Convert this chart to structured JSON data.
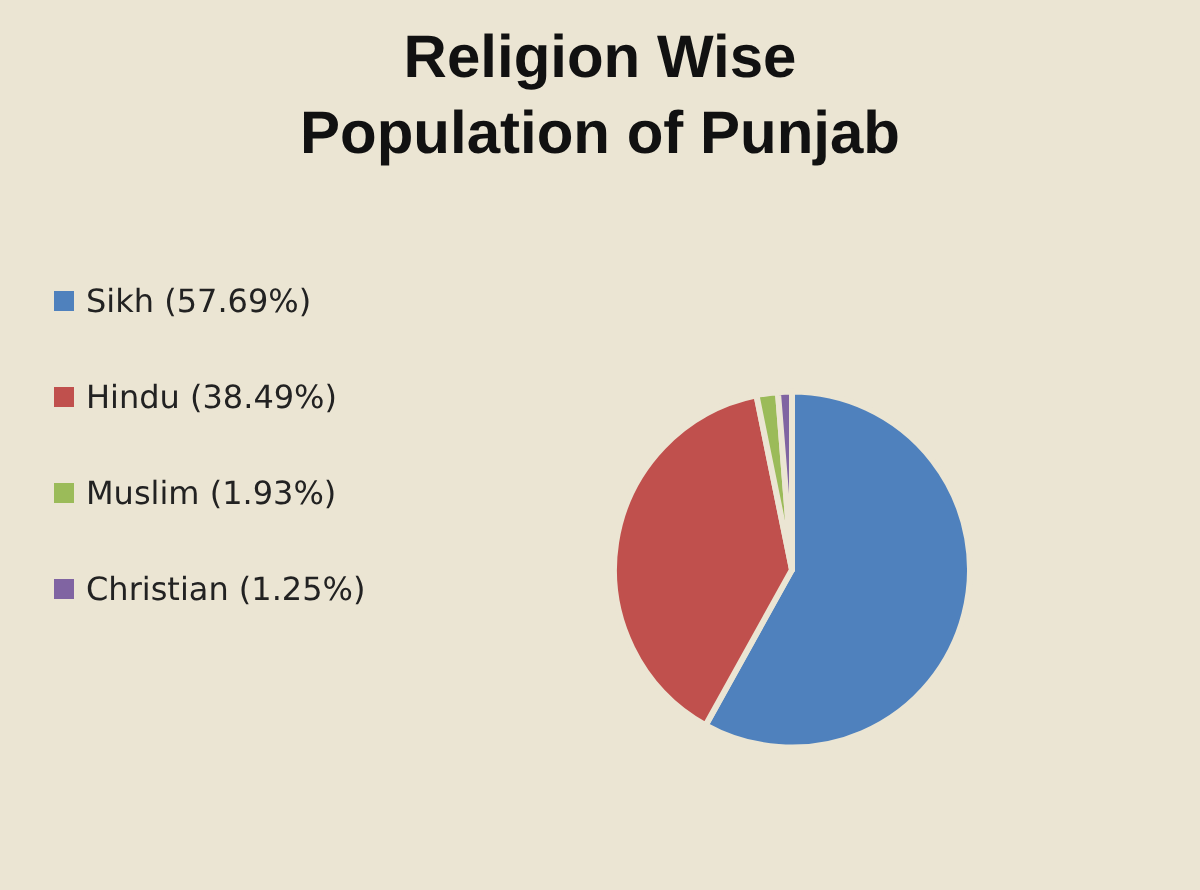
{
  "chart_data": {
    "type": "pie",
    "title": "Religion Wise\nPopulation of Punjab",
    "categories": [
      "Sikh (57.69%)",
      "Hindu (38.49%)",
      "Muslim (1.93%)",
      "Christian (1.25%)"
    ],
    "values": [
      57.69,
      38.49,
      1.93,
      1.25
    ],
    "colors": [
      "#4f81bd",
      "#c0504d",
      "#9bbb59",
      "#8064a2"
    ],
    "legend": "left"
  }
}
